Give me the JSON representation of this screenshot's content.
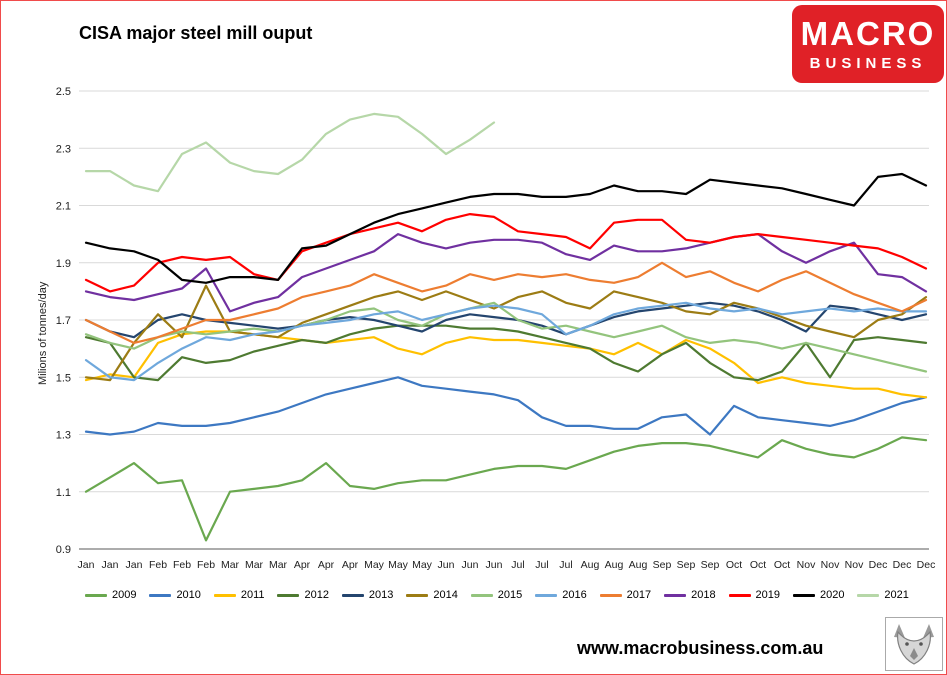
{
  "page": {
    "footer_url": "www.macrobusiness.com.au",
    "border_color": "#f04b4b"
  },
  "logo": {
    "line1": "MACRO",
    "line2": "BUSINESS",
    "bg": "#e02127"
  },
  "chart_data": {
    "type": "line",
    "title": "CISA major steel mill ouput",
    "ylabel": "Milions of tonnes/day",
    "ylim": [
      0.9,
      2.5
    ],
    "yticks": [
      0.9,
      1.1,
      1.3,
      1.5,
      1.7,
      1.9,
      2.1,
      2.3,
      2.5
    ],
    "grid": true,
    "legend_position": "bottom",
    "x_labels": [
      "Jan",
      "Jan",
      "Jan",
      "Feb",
      "Feb",
      "Feb",
      "Mar",
      "Mar",
      "Mar",
      "Apr",
      "Apr",
      "Apr",
      "May",
      "May",
      "May",
      "Jun",
      "Jun",
      "Jun",
      "Jul",
      "Jul",
      "Jul",
      "Aug",
      "Aug",
      "Aug",
      "Sep",
      "Sep",
      "Sep",
      "Oct",
      "Oct",
      "Oct",
      "Nov",
      "Nov",
      "Nov",
      "Dec",
      "Dec",
      "Dec"
    ],
    "series": [
      {
        "name": "2009",
        "color": "#6aa84f",
        "values": [
          1.1,
          1.15,
          1.2,
          1.13,
          1.14,
          0.93,
          1.1,
          1.11,
          1.12,
          1.14,
          1.2,
          1.12,
          1.11,
          1.13,
          1.14,
          1.14,
          1.16,
          1.18,
          1.19,
          1.19,
          1.18,
          1.21,
          1.24,
          1.26,
          1.27,
          1.27,
          1.26,
          1.24,
          1.22,
          1.28,
          1.25,
          1.23,
          1.22,
          1.25,
          1.29,
          1.28
        ]
      },
      {
        "name": "2010",
        "color": "#3d78c2",
        "values": [
          1.31,
          1.3,
          1.31,
          1.34,
          1.33,
          1.33,
          1.34,
          1.36,
          1.38,
          1.41,
          1.44,
          1.46,
          1.48,
          1.5,
          1.47,
          1.46,
          1.45,
          1.44,
          1.42,
          1.36,
          1.33,
          1.33,
          1.32,
          1.32,
          1.36,
          1.37,
          1.3,
          1.4,
          1.36,
          1.35,
          1.34,
          1.33,
          1.35,
          1.38,
          1.41,
          1.43
        ]
      },
      {
        "name": "2011",
        "color": "#ffc000",
        "values": [
          1.49,
          1.51,
          1.5,
          1.62,
          1.65,
          1.66,
          1.66,
          1.65,
          1.64,
          1.63,
          1.62,
          1.63,
          1.64,
          1.6,
          1.58,
          1.62,
          1.64,
          1.63,
          1.63,
          1.62,
          1.61,
          1.6,
          1.58,
          1.62,
          1.58,
          1.63,
          1.6,
          1.55,
          1.48,
          1.5,
          1.48,
          1.47,
          1.46,
          1.46,
          1.44,
          1.43
        ]
      },
      {
        "name": "2012",
        "color": "#4e7a31",
        "values": [
          1.64,
          1.62,
          1.5,
          1.49,
          1.57,
          1.55,
          1.56,
          1.59,
          1.61,
          1.63,
          1.62,
          1.65,
          1.67,
          1.68,
          1.68,
          1.68,
          1.67,
          1.67,
          1.66,
          1.64,
          1.62,
          1.6,
          1.55,
          1.52,
          1.58,
          1.62,
          1.55,
          1.5,
          1.49,
          1.52,
          1.62,
          1.5,
          1.63,
          1.64,
          1.63,
          1.62
        ]
      },
      {
        "name": "2013",
        "color": "#24456e",
        "values": [
          1.7,
          1.66,
          1.64,
          1.7,
          1.72,
          1.7,
          1.69,
          1.68,
          1.67,
          1.68,
          1.7,
          1.71,
          1.7,
          1.68,
          1.66,
          1.7,
          1.72,
          1.71,
          1.7,
          1.68,
          1.65,
          1.68,
          1.71,
          1.73,
          1.74,
          1.75,
          1.76,
          1.75,
          1.73,
          1.7,
          1.66,
          1.75,
          1.74,
          1.72,
          1.7,
          1.72
        ]
      },
      {
        "name": "2014",
        "color": "#9c7c14",
        "values": [
          1.5,
          1.49,
          1.62,
          1.72,
          1.64,
          1.82,
          1.66,
          1.65,
          1.64,
          1.69,
          1.72,
          1.75,
          1.78,
          1.8,
          1.77,
          1.8,
          1.77,
          1.74,
          1.78,
          1.8,
          1.76,
          1.74,
          1.8,
          1.78,
          1.76,
          1.73,
          1.72,
          1.76,
          1.74,
          1.71,
          1.68,
          1.66,
          1.64,
          1.7,
          1.72,
          1.78
        ]
      },
      {
        "name": "2015",
        "color": "#93c47d",
        "values": [
          1.65,
          1.62,
          1.6,
          1.64,
          1.66,
          1.65,
          1.66,
          1.67,
          1.66,
          1.68,
          1.7,
          1.73,
          1.74,
          1.7,
          1.68,
          1.72,
          1.74,
          1.76,
          1.7,
          1.67,
          1.68,
          1.66,
          1.64,
          1.66,
          1.68,
          1.64,
          1.62,
          1.63,
          1.62,
          1.6,
          1.62,
          1.6,
          1.58,
          1.56,
          1.54,
          1.52
        ]
      },
      {
        "name": "2016",
        "color": "#6fa8dc",
        "values": [
          1.56,
          1.5,
          1.49,
          1.55,
          1.6,
          1.64,
          1.63,
          1.65,
          1.66,
          1.68,
          1.69,
          1.7,
          1.72,
          1.73,
          1.7,
          1.72,
          1.74,
          1.75,
          1.74,
          1.72,
          1.65,
          1.68,
          1.72,
          1.74,
          1.75,
          1.76,
          1.74,
          1.73,
          1.74,
          1.72,
          1.73,
          1.74,
          1.73,
          1.74,
          1.73,
          1.73
        ]
      },
      {
        "name": "2017",
        "color": "#ed7d31",
        "values": [
          1.7,
          1.66,
          1.62,
          1.64,
          1.67,
          1.7,
          1.7,
          1.72,
          1.74,
          1.78,
          1.8,
          1.82,
          1.86,
          1.83,
          1.8,
          1.82,
          1.86,
          1.84,
          1.86,
          1.85,
          1.86,
          1.84,
          1.83,
          1.85,
          1.9,
          1.85,
          1.87,
          1.83,
          1.8,
          1.84,
          1.87,
          1.83,
          1.79,
          1.76,
          1.73,
          1.77
        ]
      },
      {
        "name": "2018",
        "color": "#7030a0",
        "values": [
          1.8,
          1.78,
          1.77,
          1.79,
          1.81,
          1.88,
          1.73,
          1.76,
          1.78,
          1.85,
          1.88,
          1.91,
          1.94,
          2.0,
          1.97,
          1.95,
          1.97,
          1.98,
          1.98,
          1.97,
          1.93,
          1.91,
          1.96,
          1.94,
          1.94,
          1.95,
          1.97,
          1.99,
          2.0,
          1.94,
          1.9,
          1.94,
          1.97,
          1.86,
          1.85,
          1.8
        ]
      },
      {
        "name": "2019",
        "color": "#ff0000",
        "values": [
          1.84,
          1.8,
          1.82,
          1.9,
          1.92,
          1.91,
          1.92,
          1.86,
          1.84,
          1.94,
          1.97,
          2.0,
          2.02,
          2.04,
          2.01,
          2.05,
          2.07,
          2.06,
          2.01,
          2.0,
          1.99,
          1.95,
          2.04,
          2.05,
          2.05,
          1.98,
          1.97,
          1.99,
          2.0,
          1.99,
          1.98,
          1.97,
          1.96,
          1.95,
          1.92,
          1.88
        ]
      },
      {
        "name": "2020",
        "color": "#000000",
        "values": [
          1.97,
          1.95,
          1.94,
          1.91,
          1.84,
          1.83,
          1.85,
          1.85,
          1.84,
          1.95,
          1.96,
          2.0,
          2.04,
          2.07,
          2.09,
          2.11,
          2.13,
          2.14,
          2.14,
          2.13,
          2.13,
          2.14,
          2.17,
          2.15,
          2.15,
          2.14,
          2.19,
          2.18,
          2.17,
          2.16,
          2.14,
          2.12,
          2.1,
          2.2,
          2.21,
          2.17
        ]
      },
      {
        "name": "2021",
        "color": "#b6d7a8",
        "values": [
          2.22,
          2.22,
          2.17,
          2.15,
          2.28,
          2.32,
          2.25,
          2.22,
          2.21,
          2.26,
          2.35,
          2.4,
          2.42,
          2.41,
          2.35,
          2.28,
          2.33,
          2.39,
          null,
          null,
          null,
          null,
          null,
          null,
          null,
          null,
          null,
          null,
          null,
          null,
          null,
          null,
          null,
          null,
          null,
          null
        ]
      }
    ]
  }
}
